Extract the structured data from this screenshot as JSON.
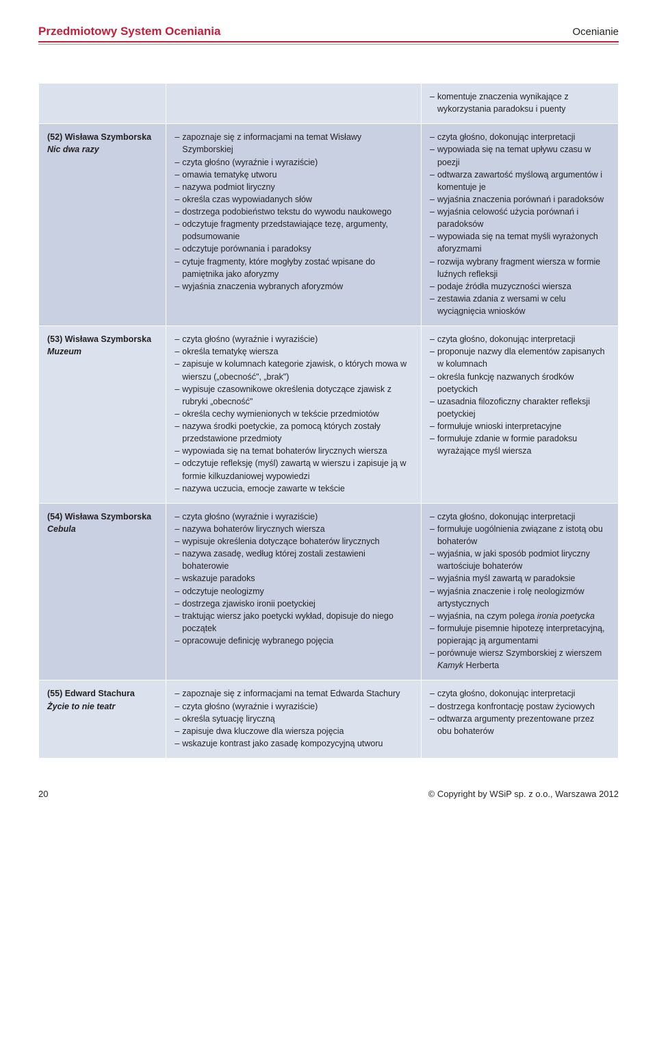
{
  "header": {
    "left": "Przedmiotowy System Oceniania",
    "right": "Ocenianie"
  },
  "rows": [
    {
      "band": "a",
      "topic": {
        "num": "",
        "author": "",
        "title": ""
      },
      "col2": [],
      "col3": [
        "komentuje znaczenia wynikające z wykorzystania paradoksu i puenty"
      ]
    },
    {
      "band": "b",
      "topic": {
        "num": "(52)",
        "author": "Wisława Szymborska",
        "title": "Nic dwa razy"
      },
      "col2": [
        "zapoznaje się z informacjami na temat Wisławy Szymborskiej",
        "czyta głośno (wyraźnie i wyraziście)",
        "omawia tematykę utworu",
        "nazywa podmiot liryczny",
        "określa czas wypowiadanych słów",
        "dostrzega podobieństwo tekstu do wywodu naukowego",
        "odczytuje fragmenty przedstawiające tezę, argumenty, podsumowanie",
        "odczytuje porównania i paradoksy",
        "cytuje fragmenty, które mogłyby zostać wpisane do pamiętnika jako aforyzmy",
        "wyjaśnia znaczenia wybranych aforyzmów"
      ],
      "col3": [
        "czyta głośno, dokonując interpretacji",
        "wypowiada się na temat upływu czasu w poezji",
        "odtwarza zawartość myślową argumentów i komentuje je",
        "wyjaśnia znaczenia porównań i paradoksów",
        "wyjaśnia celowość użycia porównań i paradoksów",
        "wypowiada się na temat myśli wyrażonych aforyzmami",
        "rozwija wybrany fragment wiersza w formie luźnych refleksji",
        "podaje źródła muzyczności wiersza",
        "zestawia zdania z wersami w celu wyciągnięcia wniosków"
      ]
    },
    {
      "band": "a",
      "topic": {
        "num": "(53)",
        "author": "Wisława Szymborska",
        "title": "Muzeum"
      },
      "col2": [
        "czyta głośno (wyraźnie i wyraziście)",
        "określa tematykę wiersza",
        "zapisuje w kolumnach kategorie zjawisk, o których mowa w wierszu („obecność\", „brak\")",
        "wypisuje czasownikowe określenia dotyczące zjawisk z rubryki „obecność\"",
        "określa cechy wymienionych w tekście przedmiotów",
        "nazywa środki poetyckie, za pomocą których zostały przedstawione przedmioty",
        "wypowiada się na temat bohaterów lirycznych wiersza",
        "odczytuje refleksję (myśl) zawartą w wierszu i zapisuje ją w formie kilkuzdaniowej wypowiedzi",
        "nazywa uczucia, emocje zawarte w tekście"
      ],
      "col3": [
        "czyta głośno, dokonując interpretacji",
        "proponuje nazwy dla elementów zapisanych w kolumnach",
        "określa funkcję nazwanych środków poetyckich",
        "uzasadnia filozoficzny charakter refleksji poetyckiej",
        "formułuje wnioski interpretacyjne",
        "formułuje zdanie w formie paradoksu wyrażające myśl wiersza"
      ]
    },
    {
      "band": "b",
      "topic": {
        "num": "(54)",
        "author": "Wisława Szymborska",
        "title": "Cebula"
      },
      "col2": [
        "czyta głośno (wyraźnie i wyraziście)",
        "nazywa bohaterów lirycznych wiersza",
        "wypisuje określenia dotyczące bohaterów lirycznych",
        "nazywa zasadę, według której zostali zestawieni bohaterowie",
        "wskazuje paradoks",
        "odczytuje neologizmy",
        "dostrzega zjawisko ironii poetyckiej",
        "traktując wiersz jako poetycki wykład, dopisuje do niego początek",
        "opracowuje definicję wybranego pojęcia"
      ],
      "col3": [
        "czyta głośno, dokonując interpretacji",
        "formułuje uogólnienia związane z istotą obu bohaterów",
        "wyjaśnia, w jaki sposób podmiot liryczny wartościuje bohaterów",
        "wyjaśnia myśl zawartą w paradoksie",
        "wyjaśnia znaczenie i rolę neologizmów artystycznych",
        "wyjaśnia, na czym polega <i>ironia poetycka</i>",
        "formułuje pisemnie hipotezę interpretacyjną, popierając ją argumentami",
        "porównuje wiersz Szymborskiej z wierszem <i>Kamyk</i> Herberta"
      ]
    },
    {
      "band": "a",
      "topic": {
        "num": "(55)",
        "author": "Edward Stachura",
        "title": "Życie to nie teatr"
      },
      "col2": [
        "zapoznaje się z informacjami na temat Edwarda Stachury",
        "czyta głośno (wyraźnie i wyraziście)",
        "określa sytuację liryczną",
        "zapisuje dwa kluczowe dla wiersza pojęcia",
        "wskazuje kontrast jako zasadę kompozycyjną utworu"
      ],
      "col3": [
        "czyta głośno, dokonując interpretacji",
        "dostrzega konfrontację postaw życiowych",
        "odtwarza argumenty prezentowane przez obu bohaterów"
      ]
    }
  ],
  "footer": {
    "page": "20",
    "copyright": "© Copyright by WSiP sp. z o.o., Warszawa 2012"
  }
}
